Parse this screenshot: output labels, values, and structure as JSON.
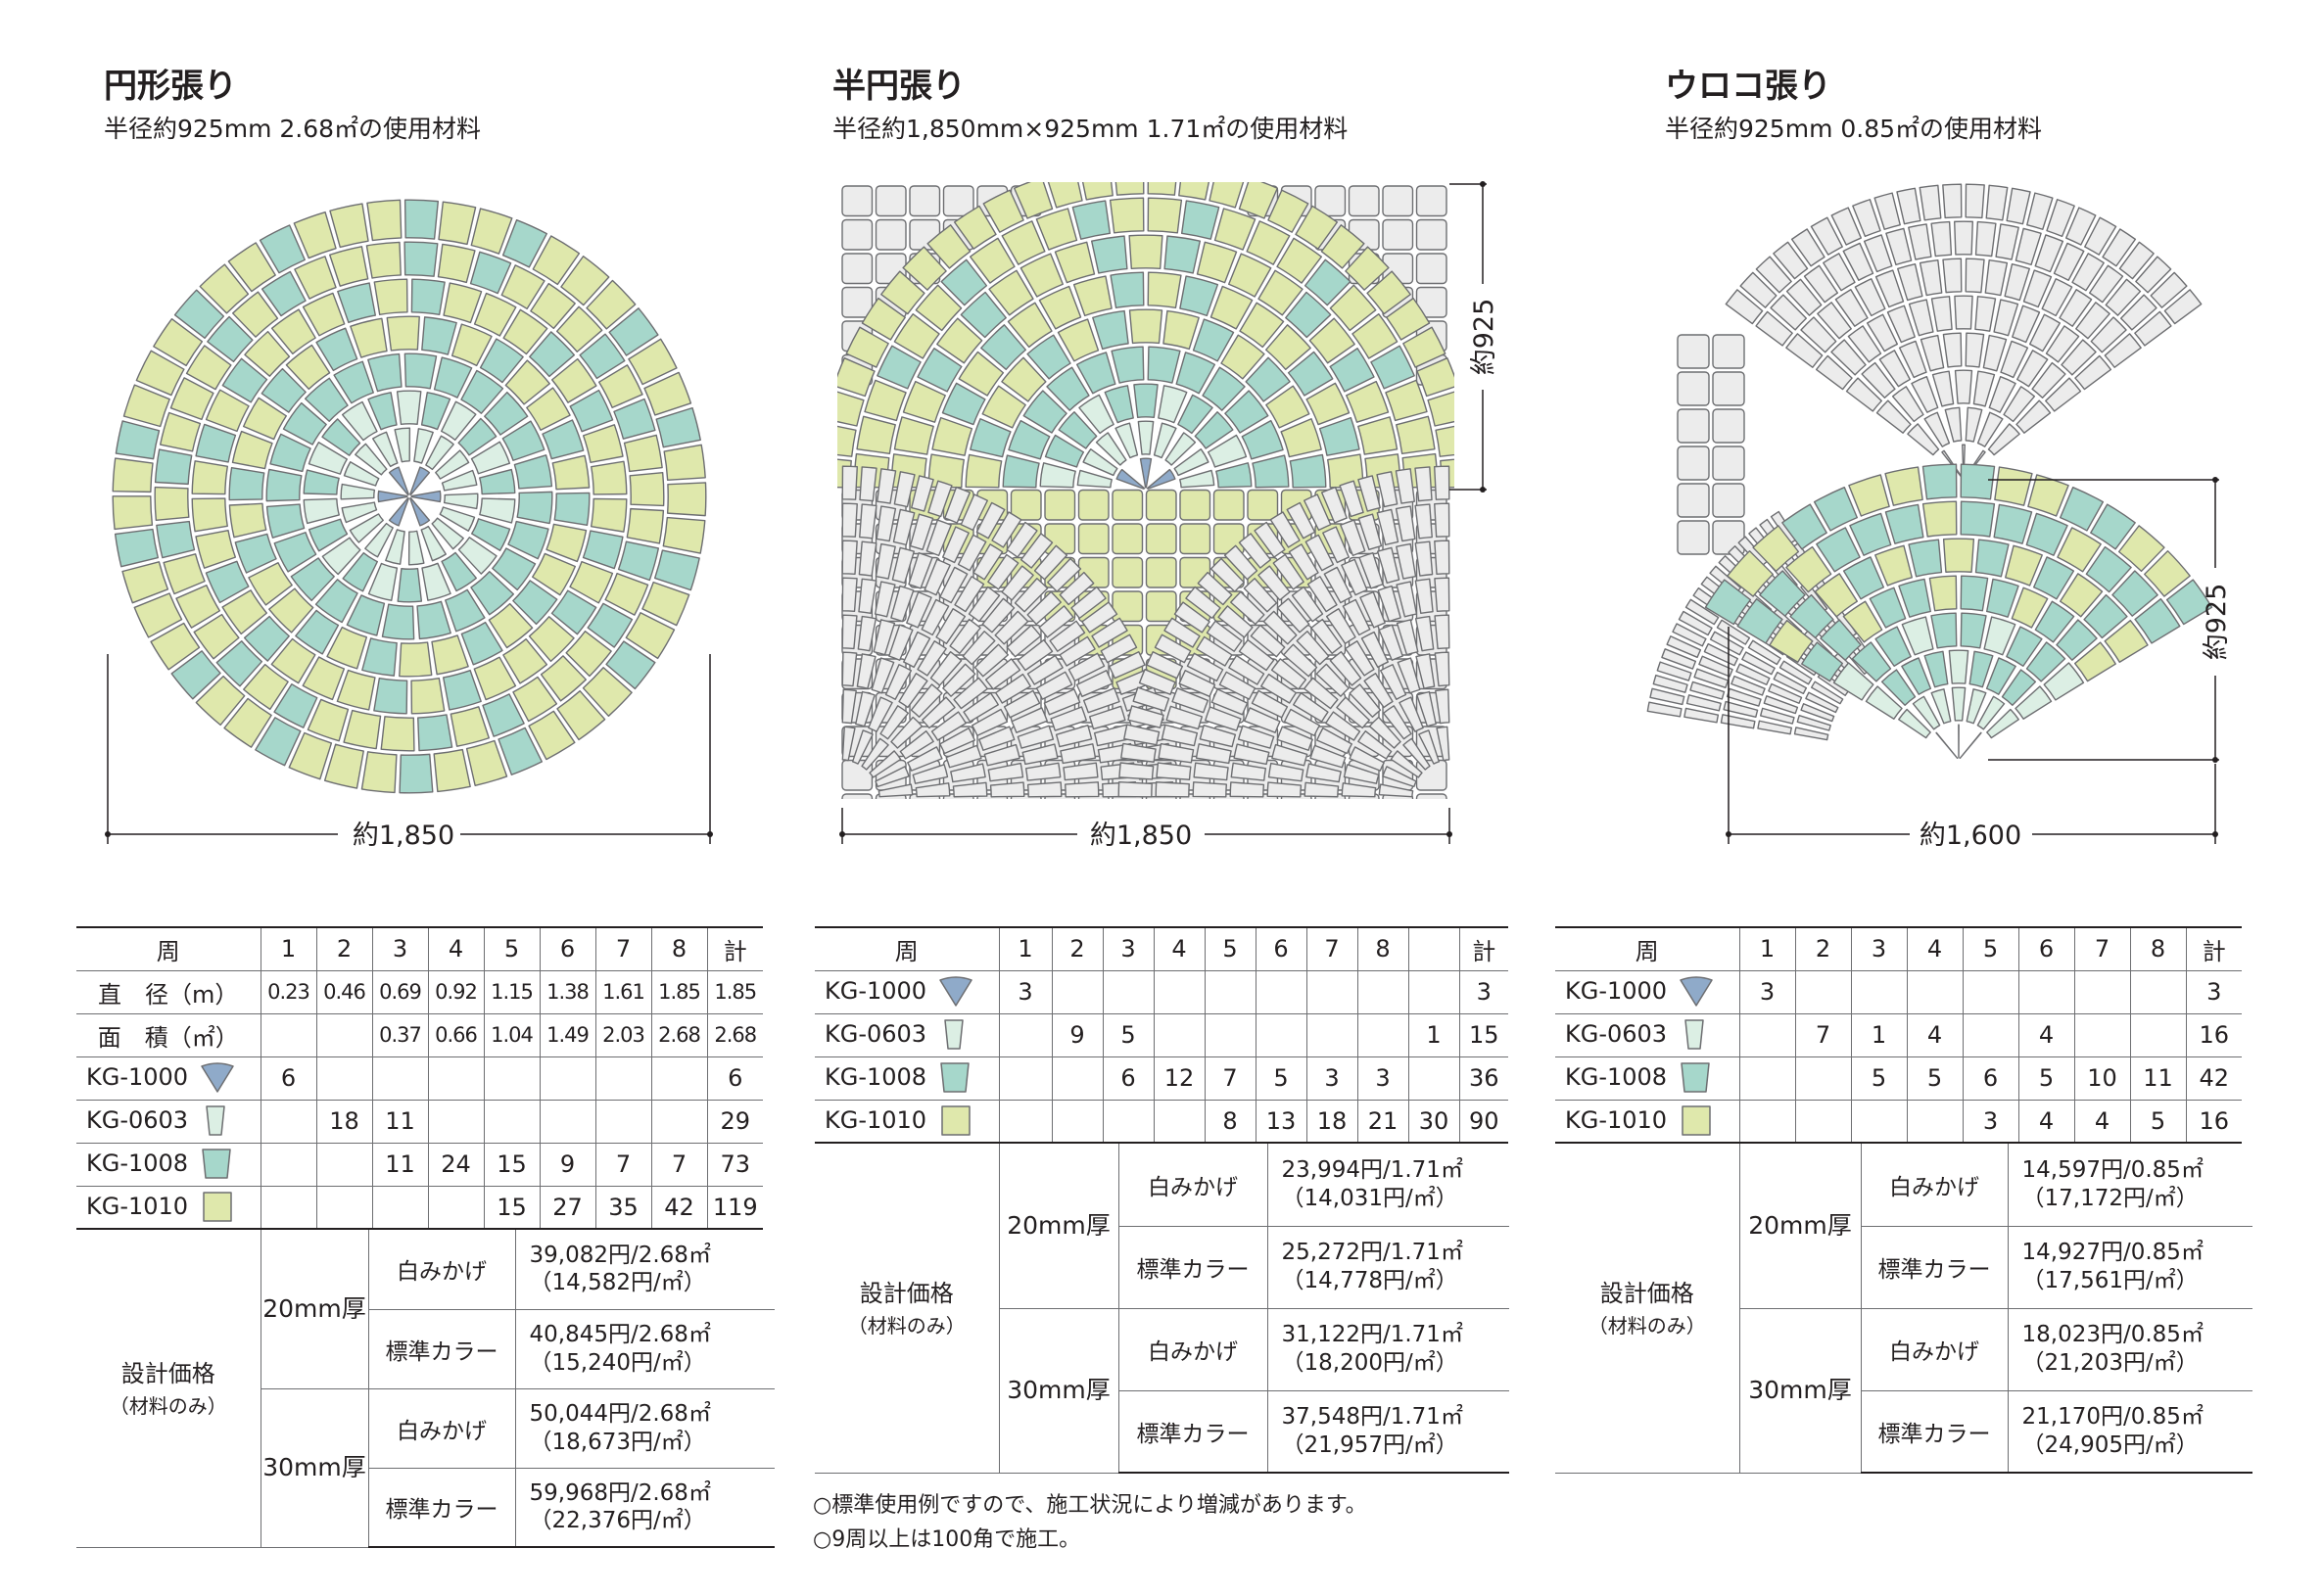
{
  "panels": [
    {
      "title": "円形張り",
      "subtitle": "半径約925mm 2.68㎡の使用材料",
      "dim_horizontal": "約1,850",
      "headers": [
        "周",
        "1",
        "2",
        "3",
        "4",
        "5",
        "6",
        "7",
        "8",
        "計"
      ],
      "rows": [
        {
          "label": "直　径（m）",
          "cells": [
            "0.23",
            "0.46",
            "0.69",
            "0.92",
            "1.15",
            "1.38",
            "1.61",
            "1.85",
            "1.85"
          ]
        },
        {
          "label": "面　積（㎡）",
          "cells": [
            "",
            "",
            "0.37",
            "0.66",
            "1.04",
            "1.49",
            "2.03",
            "2.68",
            "2.68"
          ]
        },
        {
          "label": "KG-1000",
          "shape": "fan",
          "cells": [
            "6",
            "",
            "",
            "",
            "",
            "",
            "",
            "",
            "6"
          ]
        },
        {
          "label": "KG-0603",
          "shape": "narrow",
          "cells": [
            "",
            "18",
            "11",
            "",
            "",
            "",
            "",
            "",
            "29"
          ]
        },
        {
          "label": "KG-1008",
          "shape": "trap",
          "cells": [
            "",
            "",
            "11",
            "24",
            "15",
            "9",
            "7",
            "7",
            "73"
          ]
        },
        {
          "label": "KG-1010",
          "shape": "square",
          "cells": [
            "",
            "",
            "",
            "",
            "15",
            "27",
            "35",
            "42",
            "119"
          ]
        }
      ],
      "price_label": "設計価格",
      "price_sub": "（材料のみ）",
      "thick": [
        {
          "label": "20mm厚",
          "items": [
            {
              "type": "白みかげ",
              "total": "39,082円/2.68㎡",
              "per": "（14,582円/㎡）"
            },
            {
              "type": "標準カラー",
              "total": "40,845円/2.68㎡",
              "per": "（15,240円/㎡）"
            }
          ]
        },
        {
          "label": "30mm厚",
          "items": [
            {
              "type": "白みかげ",
              "total": "50,044円/2.68㎡",
              "per": "（18,673円/㎡）"
            },
            {
              "type": "標準カラー",
              "total": "59,968円/2.68㎡",
              "per": "（22,376円/㎡）"
            }
          ]
        }
      ]
    },
    {
      "title": "半円張り",
      "subtitle": "半径約1,850mm×925mm 1.71㎡の使用材料",
      "dim_horizontal": "約1,850",
      "dim_vertical": "約925",
      "headers": [
        "周",
        "1",
        "2",
        "3",
        "4",
        "5",
        "6",
        "7",
        "8",
        "",
        "計"
      ],
      "rows": [
        {
          "label": "KG-1000",
          "shape": "fan",
          "cells": [
            "3",
            "",
            "",
            "",
            "",
            "",
            "",
            "",
            "",
            "3"
          ]
        },
        {
          "label": "KG-0603",
          "shape": "narrow",
          "cells": [
            "",
            "9",
            "5",
            "",
            "",
            "",
            "",
            "",
            "1",
            "15"
          ]
        },
        {
          "label": "KG-1008",
          "shape": "trap",
          "cells": [
            "",
            "",
            "6",
            "12",
            "7",
            "5",
            "3",
            "3",
            "",
            "36"
          ]
        },
        {
          "label": "KG-1010",
          "shape": "square",
          "cells": [
            "",
            "",
            "",
            "",
            "8",
            "13",
            "18",
            "21",
            "30",
            "90"
          ]
        }
      ],
      "price_label": "設計価格",
      "price_sub": "（材料のみ）",
      "thick": [
        {
          "label": "20mm厚",
          "items": [
            {
              "type": "白みかげ",
              "total": "23,994円/1.71㎡",
              "per": "（14,031円/㎡）"
            },
            {
              "type": "標準カラー",
              "total": "25,272円/1.71㎡",
              "per": "（14,778円/㎡）"
            }
          ]
        },
        {
          "label": "30mm厚",
          "items": [
            {
              "type": "白みかげ",
              "total": "31,122円/1.71㎡",
              "per": "（18,200円/㎡）"
            },
            {
              "type": "標準カラー",
              "total": "37,548円/1.71㎡",
              "per": "（21,957円/㎡）"
            }
          ]
        }
      ],
      "notes": [
        "○標準使用例ですので、施工状況により増減があります。",
        "○9周以上は100角で施工。"
      ]
    },
    {
      "title": "ウロコ張り",
      "subtitle": "半径約925mm 0.85㎡の使用材料",
      "dim_horizontal": "約1,600",
      "dim_vertical": "約925",
      "headers": [
        "周",
        "1",
        "2",
        "3",
        "4",
        "5",
        "6",
        "7",
        "8",
        "計"
      ],
      "rows": [
        {
          "label": "KG-1000",
          "shape": "fan",
          "cells": [
            "3",
            "",
            "",
            "",
            "",
            "",
            "",
            "",
            "3"
          ]
        },
        {
          "label": "KG-0603",
          "shape": "narrow",
          "cells": [
            "",
            "7",
            "1",
            "4",
            "",
            "4",
            "",
            "",
            "16"
          ]
        },
        {
          "label": "KG-1008",
          "shape": "trap",
          "cells": [
            "",
            "",
            "5",
            "5",
            "6",
            "5",
            "10",
            "11",
            "42"
          ]
        },
        {
          "label": "KG-1010",
          "shape": "square",
          "cells": [
            "",
            "",
            "",
            "",
            "3",
            "4",
            "4",
            "5",
            "16"
          ]
        }
      ],
      "price_label": "設計価格",
      "price_sub": "（材料のみ）",
      "thick": [
        {
          "label": "20mm厚",
          "items": [
            {
              "type": "白みかげ",
              "total": "14,597円/0.85㎡",
              "per": "（17,172円/㎡）"
            },
            {
              "type": "標準カラー",
              "total": "14,927円/0.85㎡",
              "per": "（17,561円/㎡）"
            }
          ]
        },
        {
          "label": "30mm厚",
          "items": [
            {
              "type": "白みかげ",
              "total": "18,023円/0.85㎡",
              "per": "（21,203円/㎡）"
            },
            {
              "type": "標準カラー",
              "total": "21,170円/0.85㎡",
              "per": "（24,905円/㎡）"
            }
          ]
        }
      ]
    }
  ],
  "colors": {
    "blue": "#8faac9",
    "mint": "#dcefe4",
    "teal": "#a6d7cb",
    "lime": "#dfe8ac",
    "gray": "#ececec",
    "stroke": "#6d6e71"
  }
}
